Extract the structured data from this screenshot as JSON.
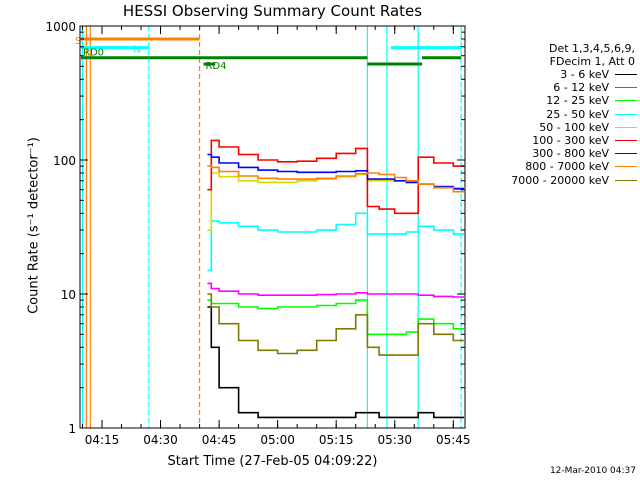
{
  "title": "HESSI Observing Summary Count Rates",
  "xlabel": "Start Time (27-Feb-05 04:09:22)",
  "ylabel": "Count Rate (s⁻¹ detector⁻¹)",
  "stamp": "12-Mar-2010 04:37",
  "legend": {
    "header_1": "Det 1,3,4,5,6,9,",
    "header_2": "FDecim 1, Att 0"
  },
  "colors": {
    "frame": "#000000",
    "black": "#000000",
    "magenta": "#ff00ff",
    "green": "#00ff00",
    "cyan": "#00ffff",
    "yellow": "#d8d800",
    "red": "#ff0000",
    "blue": "#0000ff",
    "orange": "#ff8000",
    "olive": "#807800",
    "attgreen": "#008000"
  },
  "chart_data": {
    "type": "line",
    "title": "HESSI Observing Summary Count Rates",
    "xlabel": "Start Time (27-Feb-05 04:09:22)",
    "ylabel": "Count Rate (s⁻¹ detector⁻¹)",
    "xlim": [
      "04:09:22",
      "05:48:00"
    ],
    "ylim": [
      1,
      1000
    ],
    "yscale": "log",
    "x_ticks": [
      "04:15",
      "04:30",
      "04:45",
      "05:00",
      "05:15",
      "05:30",
      "05:45"
    ],
    "y_ticks": [
      "1",
      "10",
      "100",
      "1000"
    ],
    "legend_position": "right",
    "series": [
      {
        "name": "3 - 6 keV",
        "color": "black",
        "x": [
          "04:42",
          "04:43",
          "04:45",
          "04:50",
          "04:55",
          "05:00",
          "05:05",
          "05:10",
          "05:15",
          "05:20",
          "05:23",
          "05:26",
          "05:30",
          "05:33",
          "05:36",
          "05:40",
          "05:45"
        ],
        "y": [
          8.0,
          4.0,
          2.0,
          1.3,
          1.2,
          1.2,
          1.2,
          1.2,
          1.2,
          1.3,
          1.3,
          1.2,
          1.2,
          1.2,
          1.3,
          1.2,
          1.2
        ]
      },
      {
        "name": "6 - 12 keV",
        "color": "magenta",
        "x": [
          "04:42",
          "04:43",
          "04:45",
          "04:50",
          "04:55",
          "05:00",
          "05:05",
          "05:10",
          "05:15",
          "05:20",
          "05:23",
          "05:26",
          "05:30",
          "05:33",
          "05:36",
          "05:40",
          "05:45"
        ],
        "y": [
          12.0,
          11.0,
          10.5,
          10.0,
          9.8,
          9.8,
          9.8,
          9.9,
          10.0,
          10.2,
          10.0,
          10.0,
          10.0,
          10.0,
          9.8,
          9.6,
          9.5
        ]
      },
      {
        "name": "12 - 25 keV",
        "color": "green",
        "x": [
          "04:42",
          "04:43",
          "04:45",
          "04:50",
          "04:55",
          "05:00",
          "05:05",
          "05:10",
          "05:15",
          "05:20",
          "05:23",
          "05:26",
          "05:30",
          "05:33",
          "05:36",
          "05:40",
          "05:45"
        ],
        "y": [
          9.0,
          8.5,
          8.5,
          8.0,
          7.8,
          8.0,
          8.0,
          8.2,
          8.5,
          9.0,
          5.0,
          5.0,
          5.0,
          5.2,
          6.5,
          6.0,
          5.5
        ]
      },
      {
        "name": "25 - 50 keV",
        "color": "cyan",
        "x": [
          "04:42",
          "04:43",
          "04:45",
          "04:50",
          "04:55",
          "05:00",
          "05:05",
          "05:10",
          "05:15",
          "05:20",
          "05:23",
          "05:26",
          "05:30",
          "05:33",
          "05:36",
          "05:40",
          "05:45"
        ],
        "y": [
          15.0,
          35.0,
          34.0,
          32.0,
          30.0,
          29.0,
          29.0,
          30.0,
          33.0,
          40.0,
          28.0,
          28.0,
          28.0,
          29.0,
          32.0,
          30.0,
          28.0
        ]
      },
      {
        "name": "50 - 100 keV",
        "color": "yellow",
        "x": [
          "04:42",
          "04:43",
          "04:45",
          "04:50",
          "04:55",
          "05:00",
          "05:05",
          "05:10",
          "05:15",
          "05:20",
          "05:23",
          "05:26",
          "05:30",
          "05:33",
          "05:36",
          "05:40",
          "05:45"
        ],
        "y": [
          30.0,
          80.0,
          75.0,
          70.0,
          68.0,
          68.0,
          70.0,
          72.0,
          75.0,
          78.0,
          70.0,
          70.0,
          70.0,
          68.0,
          66.0,
          64.0,
          62.0
        ]
      },
      {
        "name": "100 - 300 keV",
        "color": "red",
        "x": [
          "04:42",
          "04:43",
          "04:45",
          "04:50",
          "04:55",
          "05:00",
          "05:05",
          "05:10",
          "05:15",
          "05:20",
          "05:23",
          "05:26",
          "05:30",
          "05:33",
          "05:36",
          "05:40",
          "05:45"
        ],
        "y": [
          60.0,
          140.0,
          125.0,
          110.0,
          100.0,
          97.0,
          98.0,
          103.0,
          112.0,
          122.0,
          45.0,
          43.0,
          40.0,
          40.0,
          105.0,
          95.0,
          90.0
        ]
      },
      {
        "name": "300 - 800 keV",
        "color": "blue",
        "x": [
          "04:42",
          "04:43",
          "04:45",
          "04:50",
          "04:55",
          "05:00",
          "05:05",
          "05:10",
          "05:15",
          "05:20",
          "05:23",
          "05:26",
          "05:30",
          "05:33",
          "05:36",
          "05:40",
          "05:45"
        ],
        "y": [
          110.0,
          105.0,
          95.0,
          88.0,
          84.0,
          82.0,
          81.0,
          81.0,
          82.0,
          83.0,
          72.0,
          72.0,
          70.0,
          68.0,
          66.0,
          63.0,
          61.0
        ]
      },
      {
        "name": "800 - 7000 keV",
        "color": "orange",
        "x": [
          "04:42",
          "04:43",
          "04:45",
          "04:50",
          "04:55",
          "05:00",
          "05:05",
          "05:10",
          "05:15",
          "05:20",
          "05:23",
          "05:26",
          "05:30",
          "05:33",
          "05:36",
          "05:40",
          "05:45"
        ],
        "y": [
          90.0,
          88.0,
          82.0,
          76.0,
          73.0,
          72.0,
          72.0,
          73.0,
          76.0,
          79.0,
          80.0,
          78.0,
          74.0,
          70.0,
          66.0,
          62.0,
          58.0
        ]
      },
      {
        "name": "7000 - 20000 keV",
        "color": "olive",
        "x": [
          "04:42",
          "04:43",
          "04:45",
          "04:50",
          "04:55",
          "05:00",
          "05:05",
          "05:10",
          "05:15",
          "05:20",
          "05:23",
          "05:26",
          "05:30",
          "05:33",
          "05:36",
          "05:40",
          "05:45"
        ],
        "y": [
          10.0,
          8.0,
          6.0,
          4.5,
          3.8,
          3.6,
          3.8,
          4.5,
          5.5,
          7.0,
          4.0,
          3.5,
          3.5,
          3.5,
          6.0,
          5.0,
          4.5
        ]
      }
    ],
    "flags": [
      {
        "label": "S",
        "color": "orange",
        "y": 800,
        "x_start": "04:09:22",
        "x_end": "04:40"
      },
      {
        "label": "N",
        "color": "cyan",
        "y": 690,
        "x_start": "04:09:22",
        "x_end": "04:27",
        "gaps": []
      },
      {
        "label": "",
        "color": "cyan",
        "y": 690,
        "x_start": "05:29",
        "x_end": "05:47"
      },
      {
        "label": "RD0",
        "color": "attgreen",
        "y": 580,
        "x_start": "04:09:22",
        "x_end": "05:23"
      },
      {
        "label": "",
        "color": "attgreen",
        "y": 580,
        "x_start": "05:37",
        "x_end": "05:47"
      },
      {
        "label": "",
        "color": "attgreen",
        "y": 520,
        "x_start": "05:23",
        "x_end": "05:37"
      },
      {
        "label": "RD4",
        "color": "attgreen",
        "y": 520,
        "x_start": "04:41",
        "x_end": "04:44"
      }
    ],
    "vlines": [
      {
        "x": "04:10",
        "color": "cyan",
        "style": "solid"
      },
      {
        "x": "04:11",
        "color": "orange",
        "style": "solid"
      },
      {
        "x": "04:12",
        "color": "orange",
        "style": "solid"
      },
      {
        "x": "04:27",
        "color": "cyan",
        "style": "dashed"
      },
      {
        "x": "04:40",
        "color": "orange",
        "style": "dashed"
      },
      {
        "x": "05:23",
        "color": "cyan",
        "style": "solid"
      },
      {
        "x": "05:28",
        "color": "cyan",
        "style": "solid"
      },
      {
        "x": "05:36",
        "color": "cyan",
        "style": "solid"
      },
      {
        "x": "05:47",
        "color": "cyan",
        "style": "dashed"
      }
    ]
  }
}
